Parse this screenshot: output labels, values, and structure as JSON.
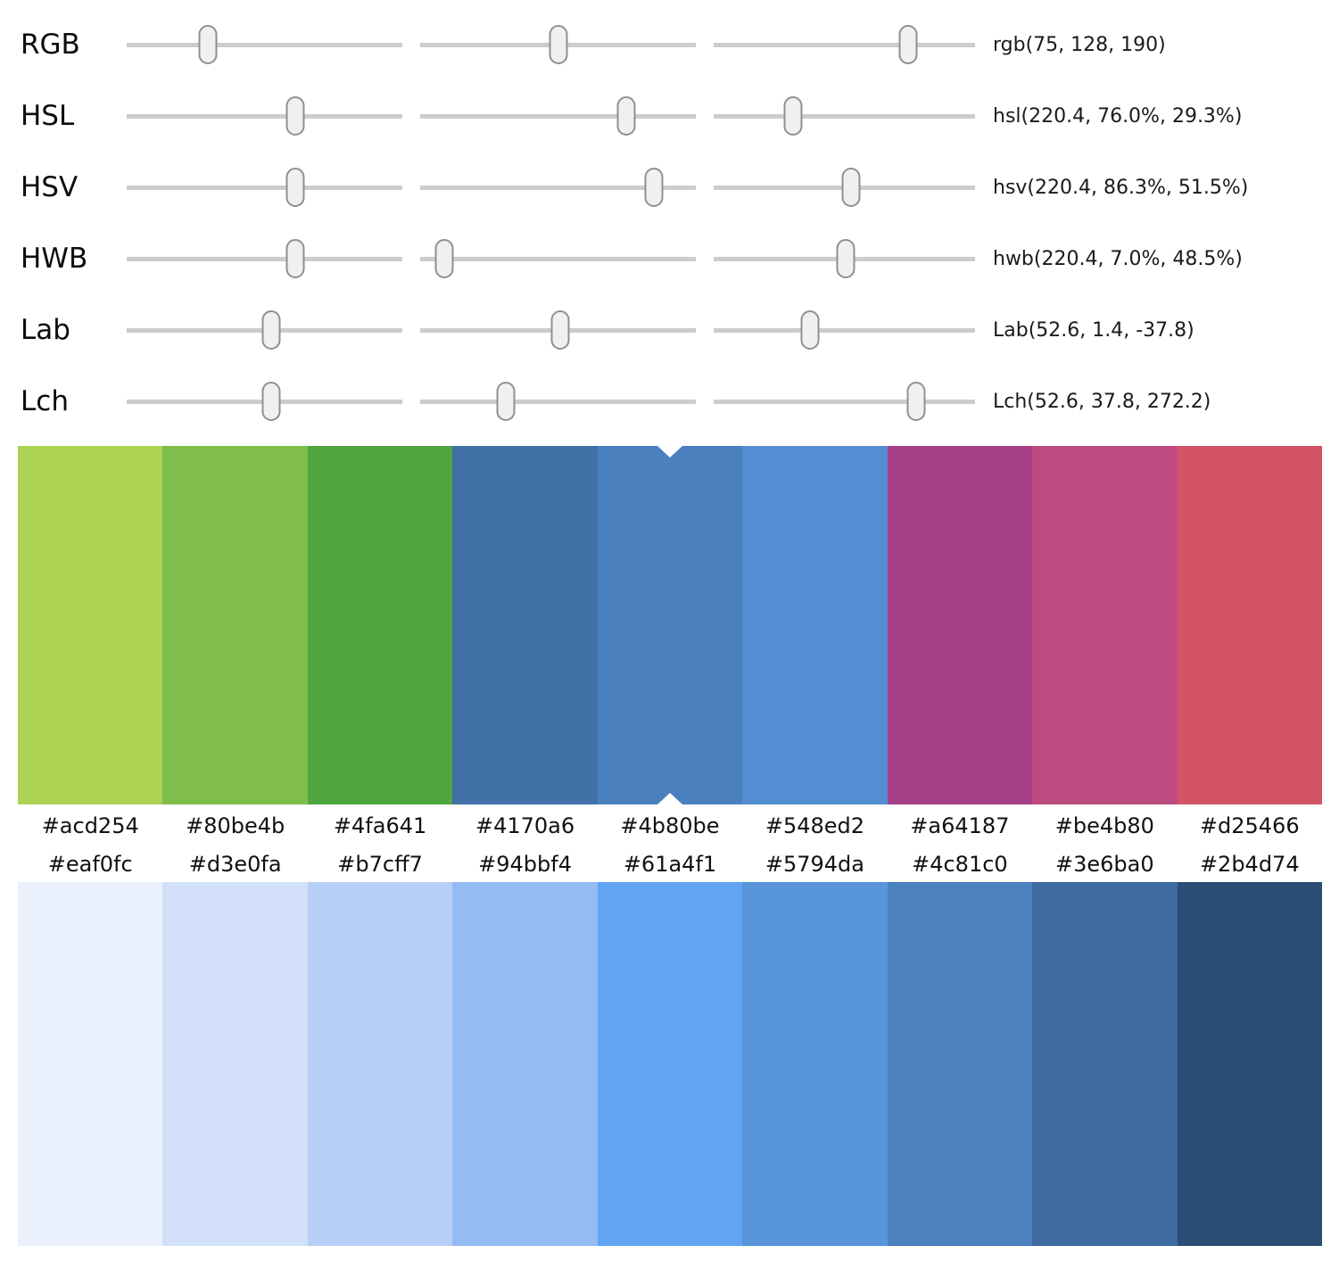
{
  "color_models": [
    {
      "label": "RGB",
      "value": "rgb(75, 128, 190)",
      "thumbs": [
        "29.4%",
        "50.2%",
        "74.5%"
      ]
    },
    {
      "label": "HSL",
      "value": "hsl(220.4, 76.0%, 29.3%)",
      "thumbs": [
        "61.2%",
        "74.8%",
        "30.5%"
      ]
    },
    {
      "label": "HSV",
      "value": "hsv(220.4, 86.3%, 51.5%)",
      "thumbs": [
        "61.2%",
        "84.8%",
        "52.5%"
      ]
    },
    {
      "label": "HWB",
      "value": "hwb(220.4, 7.0%, 48.5%)",
      "thumbs": [
        "61.2%",
        "8.7%",
        "50.5%"
      ]
    },
    {
      "label": "Lab",
      "value": "Lab(52.6, 1.4, -37.8)",
      "thumbs": [
        "52.4%",
        "50.8%",
        "37.0%"
      ]
    },
    {
      "label": "Lch",
      "value": "Lch(52.6, 37.8, 272.2)",
      "thumbs": [
        "52.4%",
        "31.1%",
        "77.5%"
      ]
    }
  ],
  "current_color": "#4b80be",
  "harmony_palette": {
    "selected_index": 4,
    "swatches": [
      "#acd254",
      "#80be4b",
      "#4fa641",
      "#4170a6",
      "#4b80be",
      "#548ed2",
      "#a64187",
      "#be4b80",
      "#d25466"
    ]
  },
  "shades_palette": {
    "swatches": [
      "#eaf0fc",
      "#d3e0fa",
      "#b7cff7",
      "#94bbf4",
      "#61a4f1",
      "#5794da",
      "#4c81c0",
      "#3e6ba0",
      "#2b4d74"
    ]
  },
  "ui_colors": {
    "track": "#cccccc",
    "thumb_fill": "#f0f0f0",
    "thumb_border": "#909090",
    "selection_notch": "#ffffff",
    "text": "#111111"
  }
}
